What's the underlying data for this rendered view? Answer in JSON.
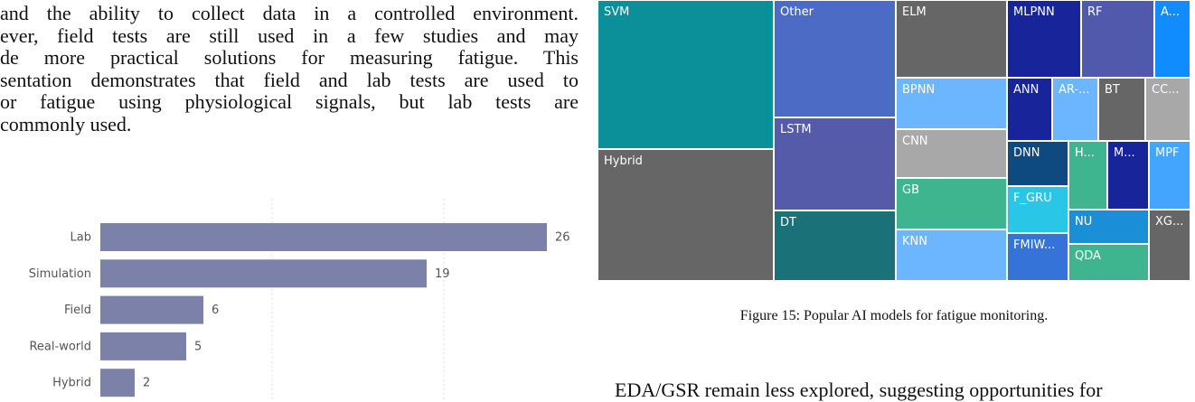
{
  "paragraph_left": {
    "lines": [
      "and the ability to collect data in a controlled environment.",
      "ever, field tests are still used in a few studies and may",
      "de more practical solutions for measuring fatigue. This",
      "sentation demonstrates that field and lab tests are used to",
      "or fatigue using physiological signals, but lab tests are",
      "commonly used."
    ]
  },
  "chart_data": [
    {
      "type": "bar",
      "orientation": "horizontal",
      "categories": [
        "Lab",
        "Simulation",
        "Field",
        "Real-world",
        "Hybrid"
      ],
      "values": [
        26,
        19,
        6,
        5,
        2
      ],
      "title": "",
      "xlabel": "",
      "ylabel": "",
      "xlim": [
        0,
        30
      ],
      "grid": true,
      "colors": {
        "bar": "#7b81a8",
        "grid": "#dcdcdc",
        "label": "#555555"
      }
    },
    {
      "type": "treemap",
      "title": "",
      "labels": [
        "SVM",
        "Other",
        "ELM",
        "MLPNN",
        "RF",
        "A...",
        "Hybrid",
        "LSTM",
        "BPNN",
        "ANN",
        "AR-...",
        "BT",
        "CC...",
        "CNN",
        "DNN",
        "H...",
        "M...",
        "MPF",
        "GB",
        "F_GRU",
        "DT",
        "NU",
        "XG...",
        "KNN",
        "FMIW...",
        "QDA"
      ],
      "colors": {
        "SVM": "#0b8f98",
        "Other": "#4b6bc4",
        "ELM": "#666666",
        "MLPNN": "#18259a",
        "RF": "#5059ac",
        "A...": "#118cff",
        "Hybrid": "#666666",
        "LSTM": "#555aa9",
        "BPNN": "#6cb6ff",
        "ANN": "#18259a",
        "AR-...": "#6cb6ff",
        "BT": "#666666",
        "CC...": "#a8a8a8",
        "CNN": "#a8a8a8",
        "DNN": "#0e4a80",
        "H...": "#3fb58f",
        "M...": "#18259a",
        "MPF": "#44a5ff",
        "GB": "#3fb58f",
        "F_GRU": "#2ac6e8",
        "DT": "#1a7177",
        "NU": "#1a8fd6",
        "XG...": "#666666",
        "KNN": "#6cb6ff",
        "FMIW...": "#3573d9",
        "QDA": "#3fb58f"
      }
    }
  ],
  "caption": "Figure 15: Popular AI models for fatigue monitoring.",
  "right_text": "EDA/GSR remain less explored, suggesting opportunities for"
}
